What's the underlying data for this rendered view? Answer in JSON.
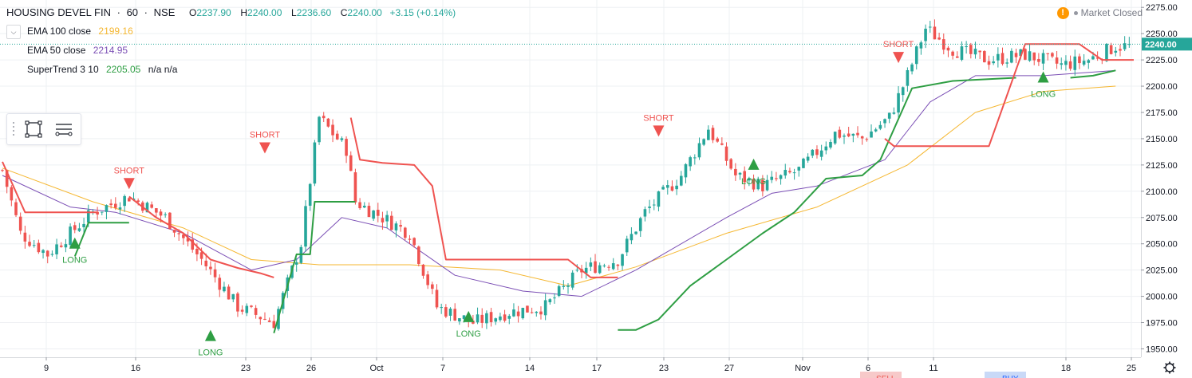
{
  "header": {
    "symbol": "HOUSING DEVEL FIN",
    "sep1": "·",
    "interval": "60",
    "sep2": "·",
    "exchange": "NSE",
    "open_label": "O",
    "open": "2237.90",
    "high_label": "H",
    "high": "2240.00",
    "low_label": "L",
    "low": "2236.60",
    "close_label": "C",
    "close": "2240.00",
    "change": "+3.15 (+0.14%)"
  },
  "market_status": {
    "icon": "warning-icon",
    "icon_glyph": "!",
    "label": "Market Closed"
  },
  "indicators": [
    {
      "name": "EMA 100 close",
      "value": "2199.16",
      "color": "#f5b731"
    },
    {
      "name": "EMA 50 close",
      "value": "2214.95",
      "color": "#7b4fb5"
    },
    {
      "name": "SuperTrend 3 10",
      "value": "2205.05",
      "extra": "n/a n/a",
      "color": "#2e9e43"
    }
  ],
  "toolbar": {
    "tools": [
      "drag-handle-icon",
      "rectangle-icon",
      "horizontal-lines-icon"
    ]
  },
  "price_axis": {
    "ticks": [
      "2275.00",
      "2250.00",
      "2225.00",
      "2200.00",
      "2175.00",
      "2150.00",
      "2125.00",
      "2100.00",
      "2075.00",
      "2050.00",
      "2025.00",
      "2000.00",
      "1975.00",
      "1950.00"
    ],
    "last_price": "2240.00",
    "last_price_color": "#26a69a"
  },
  "time_axis": {
    "labels": [
      "9",
      "16",
      "23",
      "26",
      "Oct",
      "7",
      "14",
      "17",
      "23",
      "27",
      "Nov",
      "6",
      "11",
      "18",
      "25"
    ]
  },
  "bottom_partial": {
    "sell_label": "SELL",
    "buy_label": "BUY"
  },
  "colors": {
    "up": "#26a69a",
    "down": "#ef5350",
    "ema100": "#f5b731",
    "ema50": "#7b4fb5",
    "st_up": "#2e9e43",
    "st_down": "#ef5350",
    "grid": "#eef0f3"
  },
  "chart_data": {
    "type": "candlestick",
    "title": "HOUSING DEVEL FIN · 60 · NSE",
    "ylim": [
      1942,
      2282
    ],
    "y_ticks": [
      2275,
      2250,
      2225,
      2200,
      2175,
      2150,
      2125,
      2100,
      2075,
      2050,
      2025,
      2000,
      1975,
      1950
    ],
    "x_tick_labels": [
      "9",
      "16",
      "23",
      "26",
      "Oct",
      "7",
      "14",
      "17",
      "23",
      "27",
      "Nov",
      "6",
      "11",
      "18",
      "25"
    ],
    "close_path": [
      [
        0,
        2120
      ],
      [
        4,
        2060
      ],
      [
        10,
        2040
      ],
      [
        20,
        2080
      ],
      [
        28,
        2095
      ],
      [
        36,
        2075
      ],
      [
        44,
        2035
      ],
      [
        52,
        1990
      ],
      [
        60,
        1975
      ],
      [
        66,
        2050
      ],
      [
        70,
        2170
      ],
      [
        76,
        2140
      ],
      [
        78,
        2090
      ],
      [
        84,
        2075
      ],
      [
        90,
        2060
      ],
      [
        96,
        1990
      ],
      [
        104,
        1975
      ],
      [
        112,
        1985
      ],
      [
        120,
        1990
      ],
      [
        128,
        2025
      ],
      [
        136,
        2035
      ],
      [
        142,
        2080
      ],
      [
        150,
        2115
      ],
      [
        156,
        2160
      ],
      [
        162,
        2115
      ],
      [
        168,
        2105
      ],
      [
        176,
        2120
      ],
      [
        184,
        2155
      ],
      [
        190,
        2150
      ],
      [
        196,
        2170
      ],
      [
        200,
        2210
      ],
      [
        204,
        2255
      ],
      [
        210,
        2235
      ],
      [
        218,
        2225
      ],
      [
        226,
        2230
      ],
      [
        234,
        2220
      ],
      [
        240,
        2225
      ],
      [
        246,
        2238
      ]
    ],
    "series": [
      {
        "name": "EMA 100 close",
        "color": "#f5b731",
        "values": [
          [
            0,
            2122
          ],
          [
            20,
            2090
          ],
          [
            40,
            2065
          ],
          [
            55,
            2035
          ],
          [
            70,
            2030
          ],
          [
            90,
            2030
          ],
          [
            110,
            2025
          ],
          [
            125,
            2010
          ],
          [
            140,
            2028
          ],
          [
            160,
            2060
          ],
          [
            180,
            2085
          ],
          [
            200,
            2125
          ],
          [
            215,
            2175
          ],
          [
            230,
            2195
          ],
          [
            246,
            2200
          ]
        ]
      },
      {
        "name": "EMA 50 close",
        "color": "#7b4fb5",
        "values": [
          [
            0,
            2115
          ],
          [
            15,
            2085
          ],
          [
            25,
            2080
          ],
          [
            40,
            2060
          ],
          [
            55,
            2025
          ],
          [
            65,
            2035
          ],
          [
            75,
            2075
          ],
          [
            85,
            2065
          ],
          [
            100,
            2020
          ],
          [
            115,
            2005
          ],
          [
            128,
            2000
          ],
          [
            140,
            2025
          ],
          [
            160,
            2075
          ],
          [
            170,
            2098
          ],
          [
            180,
            2105
          ],
          [
            195,
            2130
          ],
          [
            205,
            2185
          ],
          [
            215,
            2210
          ],
          [
            230,
            2210
          ],
          [
            246,
            2215
          ]
        ]
      },
      {
        "name": "SuperTrend 3 10",
        "segments": [
          {
            "dir": "down",
            "points": [
              [
                0,
                2128
              ],
              [
                5,
                2080
              ],
              [
                16,
                2080
              ],
              [
                21,
                2080
              ]
            ]
          },
          {
            "dir": "up",
            "points": [
              [
                16,
                2038
              ],
              [
                19,
                2070
              ],
              [
                26,
                2070
              ],
              [
                28,
                2070
              ]
            ]
          },
          {
            "dir": "down",
            "points": [
              [
                28,
                2095
              ],
              [
                34,
                2075
              ],
              [
                40,
                2060
              ],
              [
                46,
                2035
              ],
              [
                52,
                2027
              ],
              [
                57,
                2022
              ],
              [
                60,
                2018
              ]
            ]
          },
          {
            "dir": "up",
            "points": [
              [
                60,
                1965
              ],
              [
                65,
                2040
              ],
              [
                68,
                2040
              ],
              [
                69,
                2090
              ],
              [
                77,
                2090
              ],
              [
                78,
                2090
              ]
            ]
          },
          {
            "dir": "down",
            "points": [
              [
                77,
                2170
              ],
              [
                79,
                2130
              ],
              [
                84,
                2127
              ],
              [
                91,
                2125
              ],
              [
                95,
                2105
              ],
              [
                98,
                2035
              ],
              [
                125,
                2035
              ],
              [
                130,
                2018
              ],
              [
                136,
                2018
              ]
            ]
          },
          {
            "dir": "up",
            "points": [
              [
                136,
                1968
              ],
              [
                140,
                1968
              ],
              [
                145,
                1978
              ],
              [
                152,
                2010
              ],
              [
                160,
                2035
              ],
              [
                168,
                2060
              ],
              [
                175,
                2080
              ],
              [
                182,
                2112
              ],
              [
                190,
                2115
              ],
              [
                194,
                2130
              ],
              [
                201,
                2198
              ],
              [
                210,
                2205
              ],
              [
                224,
                2208
              ]
            ]
          },
          {
            "dir": "down",
            "points": [
              [
                195,
                2150
              ],
              [
                197,
                2143
              ],
              [
                218,
                2143
              ],
              [
                226,
                2240
              ],
              [
                238,
                2240
              ],
              [
                243,
                2225
              ],
              [
                250,
                2225
              ]
            ]
          },
          {
            "dir": "up",
            "points": [
              [
                236,
                2208
              ],
              [
                241,
                2210
              ],
              [
                246,
                2215
              ]
            ]
          }
        ]
      }
    ],
    "signals": [
      {
        "type": "LONG",
        "bar": 16,
        "price": 2050
      },
      {
        "type": "SHORT",
        "bar": 28,
        "price": 2108
      },
      {
        "type": "LONG",
        "bar": 46,
        "price": 1962
      },
      {
        "type": "SHORT",
        "bar": 58,
        "price": 2142
      },
      {
        "type": "LONG",
        "bar": 103,
        "price": 1980
      },
      {
        "type": "SHORT",
        "bar": 145,
        "price": 2158
      },
      {
        "type": "LONG",
        "bar": 166,
        "price": 2125
      },
      {
        "type": "SHORT",
        "bar": 198,
        "price": 2228
      },
      {
        "type": "LONG",
        "bar": 230,
        "price": 2208
      }
    ],
    "grid": true
  }
}
